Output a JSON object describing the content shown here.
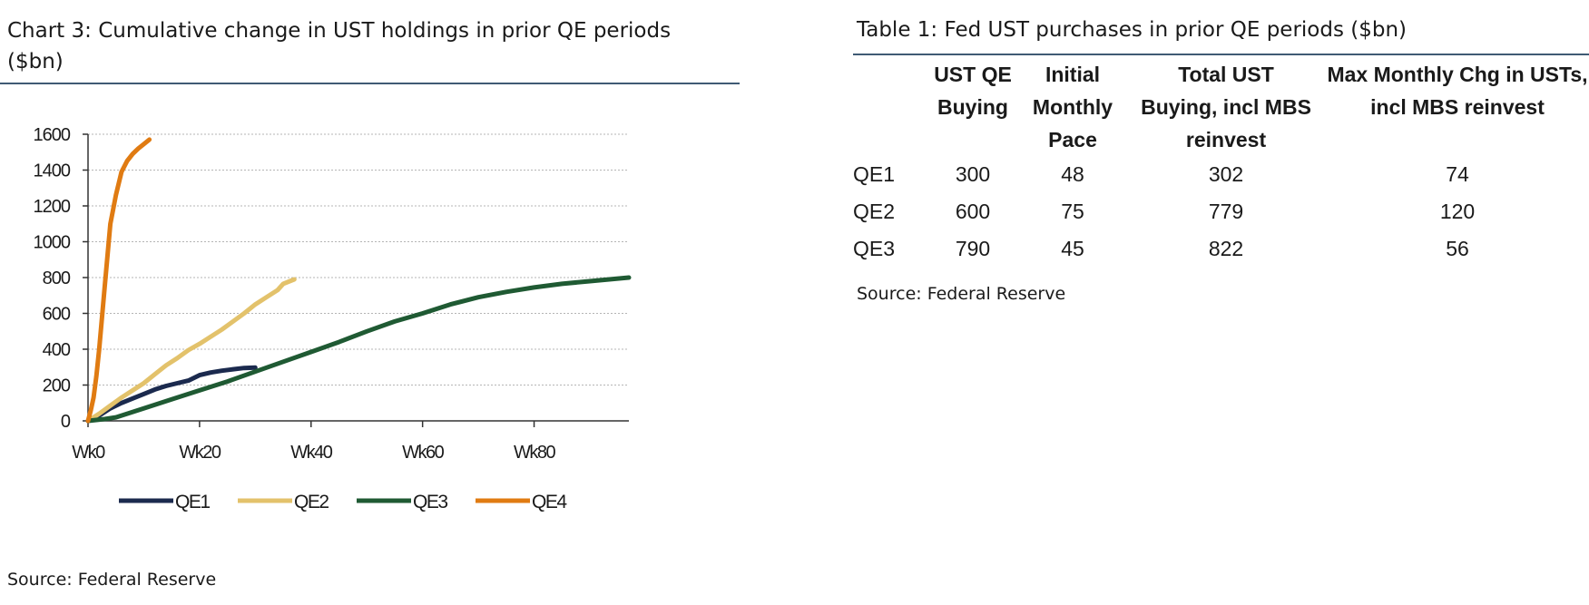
{
  "chart": {
    "title": "Chart 3: Cumulative change in UST holdings in prior QE periods ($bn)",
    "source": "Source: Federal Reserve"
  },
  "table": {
    "title": "Table 1: Fed UST purchases in prior QE periods ($bn)",
    "headers": [
      "",
      "UST QE Buying",
      "Initial Monthly Pace",
      "Total UST Buying, incl MBS reinvest",
      "Max Monthly Chg in USTs, incl MBS reinvest"
    ],
    "rows": [
      {
        "label": "QE1",
        "values": [
          "300",
          "48",
          "302",
          "74"
        ]
      },
      {
        "label": "QE2",
        "values": [
          "600",
          "75",
          "779",
          "120"
        ]
      },
      {
        "label": "QE3",
        "values": [
          "790",
          "45",
          "822",
          "56"
        ]
      }
    ],
    "source": "Source: Federal Reserve"
  },
  "chart_data": {
    "type": "line",
    "title": "Chart 3: Cumulative change in UST holdings in prior QE periods ($bn)",
    "xlabel": "",
    "ylabel": "",
    "xlim": [
      0,
      97
    ],
    "ylim": [
      0,
      1600
    ],
    "yticks": [
      0,
      200,
      400,
      600,
      800,
      1000,
      1200,
      1400,
      1600
    ],
    "xticks": [
      {
        "value": 0,
        "label": "Wk0"
      },
      {
        "value": 20,
        "label": "Wk20"
      },
      {
        "value": 40,
        "label": "Wk40"
      },
      {
        "value": 60,
        "label": "Wk60"
      },
      {
        "value": 80,
        "label": "Wk80"
      }
    ],
    "grid": "horizontal dashed",
    "legend": "bottom",
    "series": [
      {
        "name": "QE1",
        "color": "#1b2a4e",
        "x": [
          0,
          2,
          4,
          6,
          8,
          10,
          12,
          14,
          16,
          18,
          20,
          22,
          24,
          26,
          28,
          30
        ],
        "y": [
          0,
          30,
          70,
          100,
          125,
          150,
          175,
          195,
          210,
          225,
          255,
          270,
          280,
          288,
          295,
          297
        ]
      },
      {
        "name": "QE2",
        "color": "#e3c26b",
        "x": [
          0,
          2,
          4,
          6,
          8,
          10,
          12,
          14,
          16,
          18,
          20,
          22,
          24,
          26,
          28,
          30,
          32,
          34,
          35,
          37
        ],
        "y": [
          0,
          40,
          85,
          130,
          170,
          210,
          260,
          310,
          350,
          395,
          430,
          470,
          510,
          555,
          600,
          650,
          690,
          730,
          765,
          790
        ]
      },
      {
        "name": "QE3",
        "color": "#1f5a33",
        "x": [
          0,
          3,
          5,
          10,
          15,
          20,
          25,
          30,
          35,
          40,
          45,
          50,
          55,
          60,
          65,
          70,
          75,
          80,
          85,
          90,
          97
        ],
        "y": [
          0,
          10,
          20,
          70,
          120,
          170,
          220,
          275,
          330,
          385,
          440,
          500,
          555,
          600,
          650,
          690,
          720,
          745,
          765,
          780,
          800
        ]
      },
      {
        "name": "QE4",
        "color": "#e07b12",
        "x": [
          0,
          0.5,
          1,
          1.5,
          2,
          3,
          4,
          5,
          6,
          7,
          8,
          9,
          10,
          11
        ],
        "y": [
          0,
          60,
          130,
          250,
          400,
          750,
          1100,
          1260,
          1390,
          1450,
          1490,
          1520,
          1545,
          1570
        ]
      }
    ]
  }
}
